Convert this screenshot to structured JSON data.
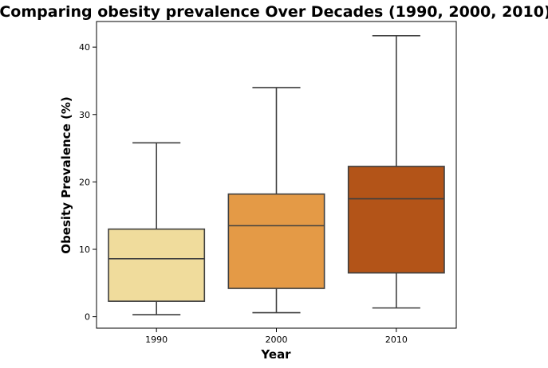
{
  "chart_data": {
    "type": "box",
    "title": "Comparing obesity prevalence Over Decades (1990, 2000, 2010)",
    "xlabel": "Year",
    "ylabel": "Obesity Prevalence (%)",
    "categories": [
      "1990",
      "2000",
      "2010"
    ],
    "yticks": [
      0,
      10,
      20,
      30,
      40
    ],
    "ylim": [
      -1.7,
      43.8
    ],
    "grid": false,
    "boxes": [
      {
        "category": "1990",
        "whisker_low": 0.3,
        "q1": 2.3,
        "median": 8.6,
        "q3": 13.0,
        "whisker_high": 25.8,
        "color": "#f0dc9c"
      },
      {
        "category": "2000",
        "whisker_low": 0.6,
        "q1": 4.2,
        "median": 13.5,
        "q3": 18.2,
        "whisker_high": 34.0,
        "color": "#e49a46"
      },
      {
        "category": "2010",
        "whisker_low": 1.3,
        "q1": 6.5,
        "median": 17.5,
        "q3": 22.3,
        "whisker_high": 41.7,
        "color": "#b35418"
      }
    ]
  }
}
